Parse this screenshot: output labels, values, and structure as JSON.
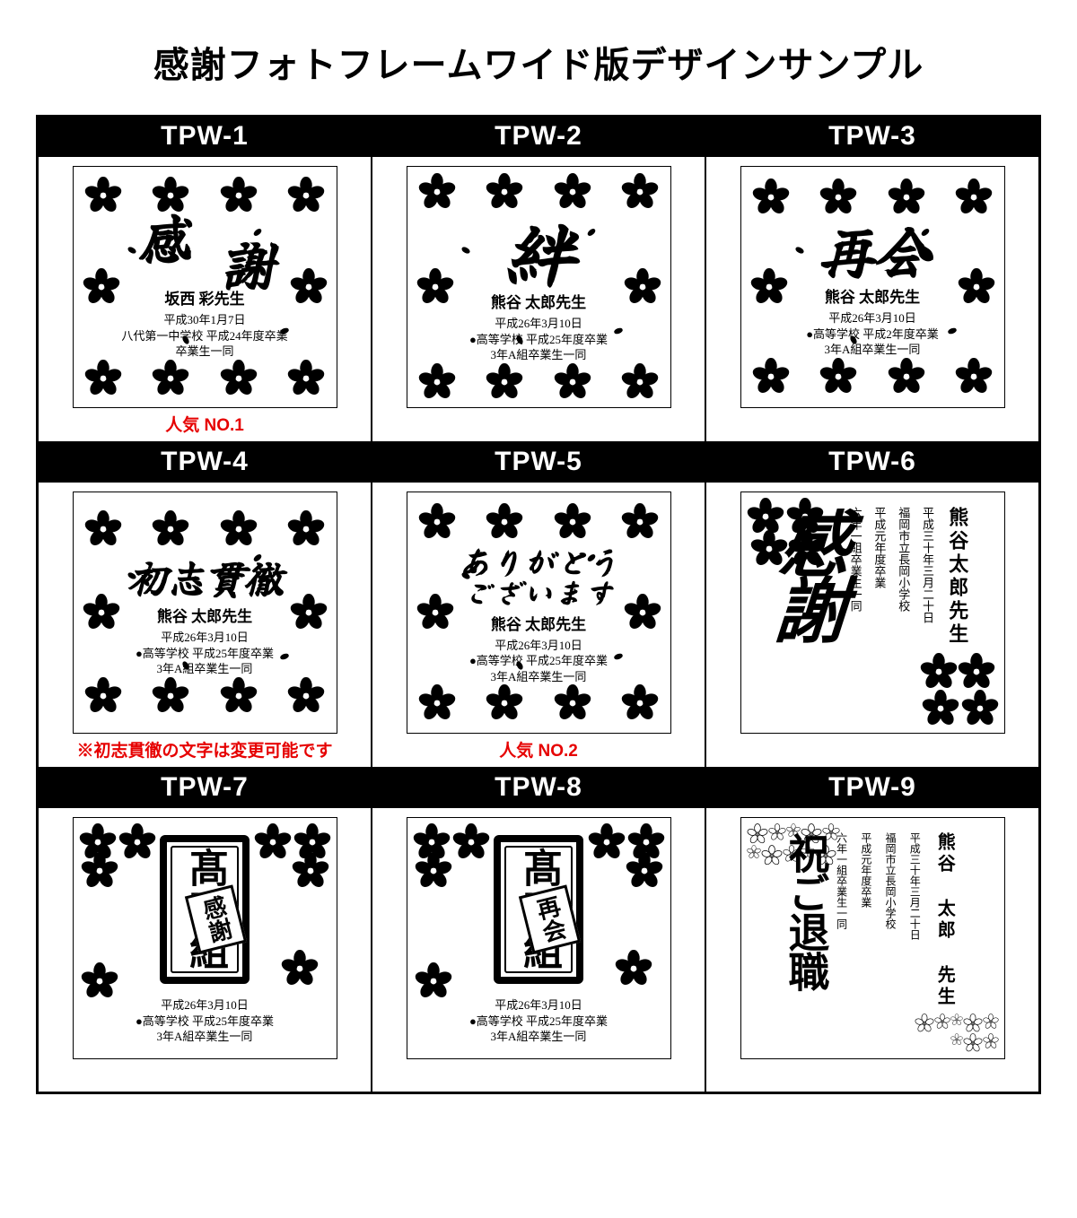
{
  "page": {
    "title": "感謝フォトフレームワイド版デザインサンプル",
    "caption_color": "#e60000",
    "bg_color": "#ffffff",
    "border_color": "#000000",
    "header_bg": "#000000",
    "header_fg": "#ffffff"
  },
  "samples": [
    {
      "id": "TPW-1",
      "layout": "sakura-center",
      "main_word": "感謝",
      "main_style": "diag-stack",
      "teacher": "坂西 彩先生",
      "date": "平成30年1月7日",
      "lines": [
        "八代第一中学校 平成24年度卒業",
        "卒業生一同"
      ],
      "caption": "人気 NO.1",
      "caption_color": "#e60000"
    },
    {
      "id": "TPW-2",
      "layout": "sakura-center",
      "main_word": "絆",
      "main_style": "single-xl",
      "teacher": "熊谷 太郎先生",
      "date": "平成26年3月10日",
      "lines": [
        "●高等学校 平成25年度卒業",
        "3年A組卒業生一同"
      ],
      "caption": ""
    },
    {
      "id": "TPW-3",
      "layout": "sakura-center",
      "main_word": "再会",
      "main_style": "horizontal",
      "teacher": "熊谷 太郎先生",
      "date": "平成26年3月10日",
      "lines": [
        "●高等学校 平成2年度卒業",
        "3年A組卒業生一同"
      ],
      "caption": ""
    },
    {
      "id": "TPW-4",
      "layout": "sakura-center",
      "main_word": "初志貫徹",
      "main_style": "horizontal-md",
      "teacher": "熊谷 太郎先生",
      "date": "平成26年3月10日",
      "lines": [
        "●高等学校 平成25年度卒業",
        "3年A組卒業生一同"
      ],
      "caption": "※初志貫徹の文字は変更可能です",
      "caption_color": "#e60000"
    },
    {
      "id": "TPW-5",
      "layout": "sakura-center",
      "main_word": "ありがとう\nございます",
      "main_style": "two-line-md",
      "teacher": "熊谷 太郎先生",
      "date": "平成26年3月10日",
      "lines": [
        "●高等学校 平成25年度卒業",
        "3年A組卒業生一同"
      ],
      "caption": "人気 NO.2",
      "caption_color": "#e60000"
    },
    {
      "id": "TPW-6",
      "layout": "vertical-brush",
      "main_word": "感謝",
      "teacher_v": "熊谷太郎先生",
      "v_lines": [
        "平成三十年三月二十日",
        "福岡市立長岡小学校",
        "平成元年度卒業",
        "六年一組卒業生一同"
      ],
      "caption": ""
    },
    {
      "id": "TPW-7",
      "layout": "plaque",
      "plaque_text": "髙石組",
      "sub_plaque": "感謝",
      "date": "平成26年3月10日",
      "lines": [
        "●高等学校 平成25年度卒業",
        "3年A組卒業生一同"
      ],
      "caption": ""
    },
    {
      "id": "TPW-8",
      "layout": "plaque",
      "plaque_text": "髙石組",
      "sub_plaque": "再会",
      "date": "平成26年3月10日",
      "lines": [
        "●高等学校 平成25年度卒業",
        "3年A組卒業生一同"
      ],
      "caption": ""
    },
    {
      "id": "TPW-9",
      "layout": "vertical-outline",
      "main_word": "祝ご退職",
      "teacher_v": "熊谷 太郎 先生",
      "v_lines": [
        "平成三十年三月二十日",
        "福岡市立長岡小学校",
        "平成元年度卒業",
        "六年一組卒業生一同"
      ],
      "caption": ""
    }
  ]
}
